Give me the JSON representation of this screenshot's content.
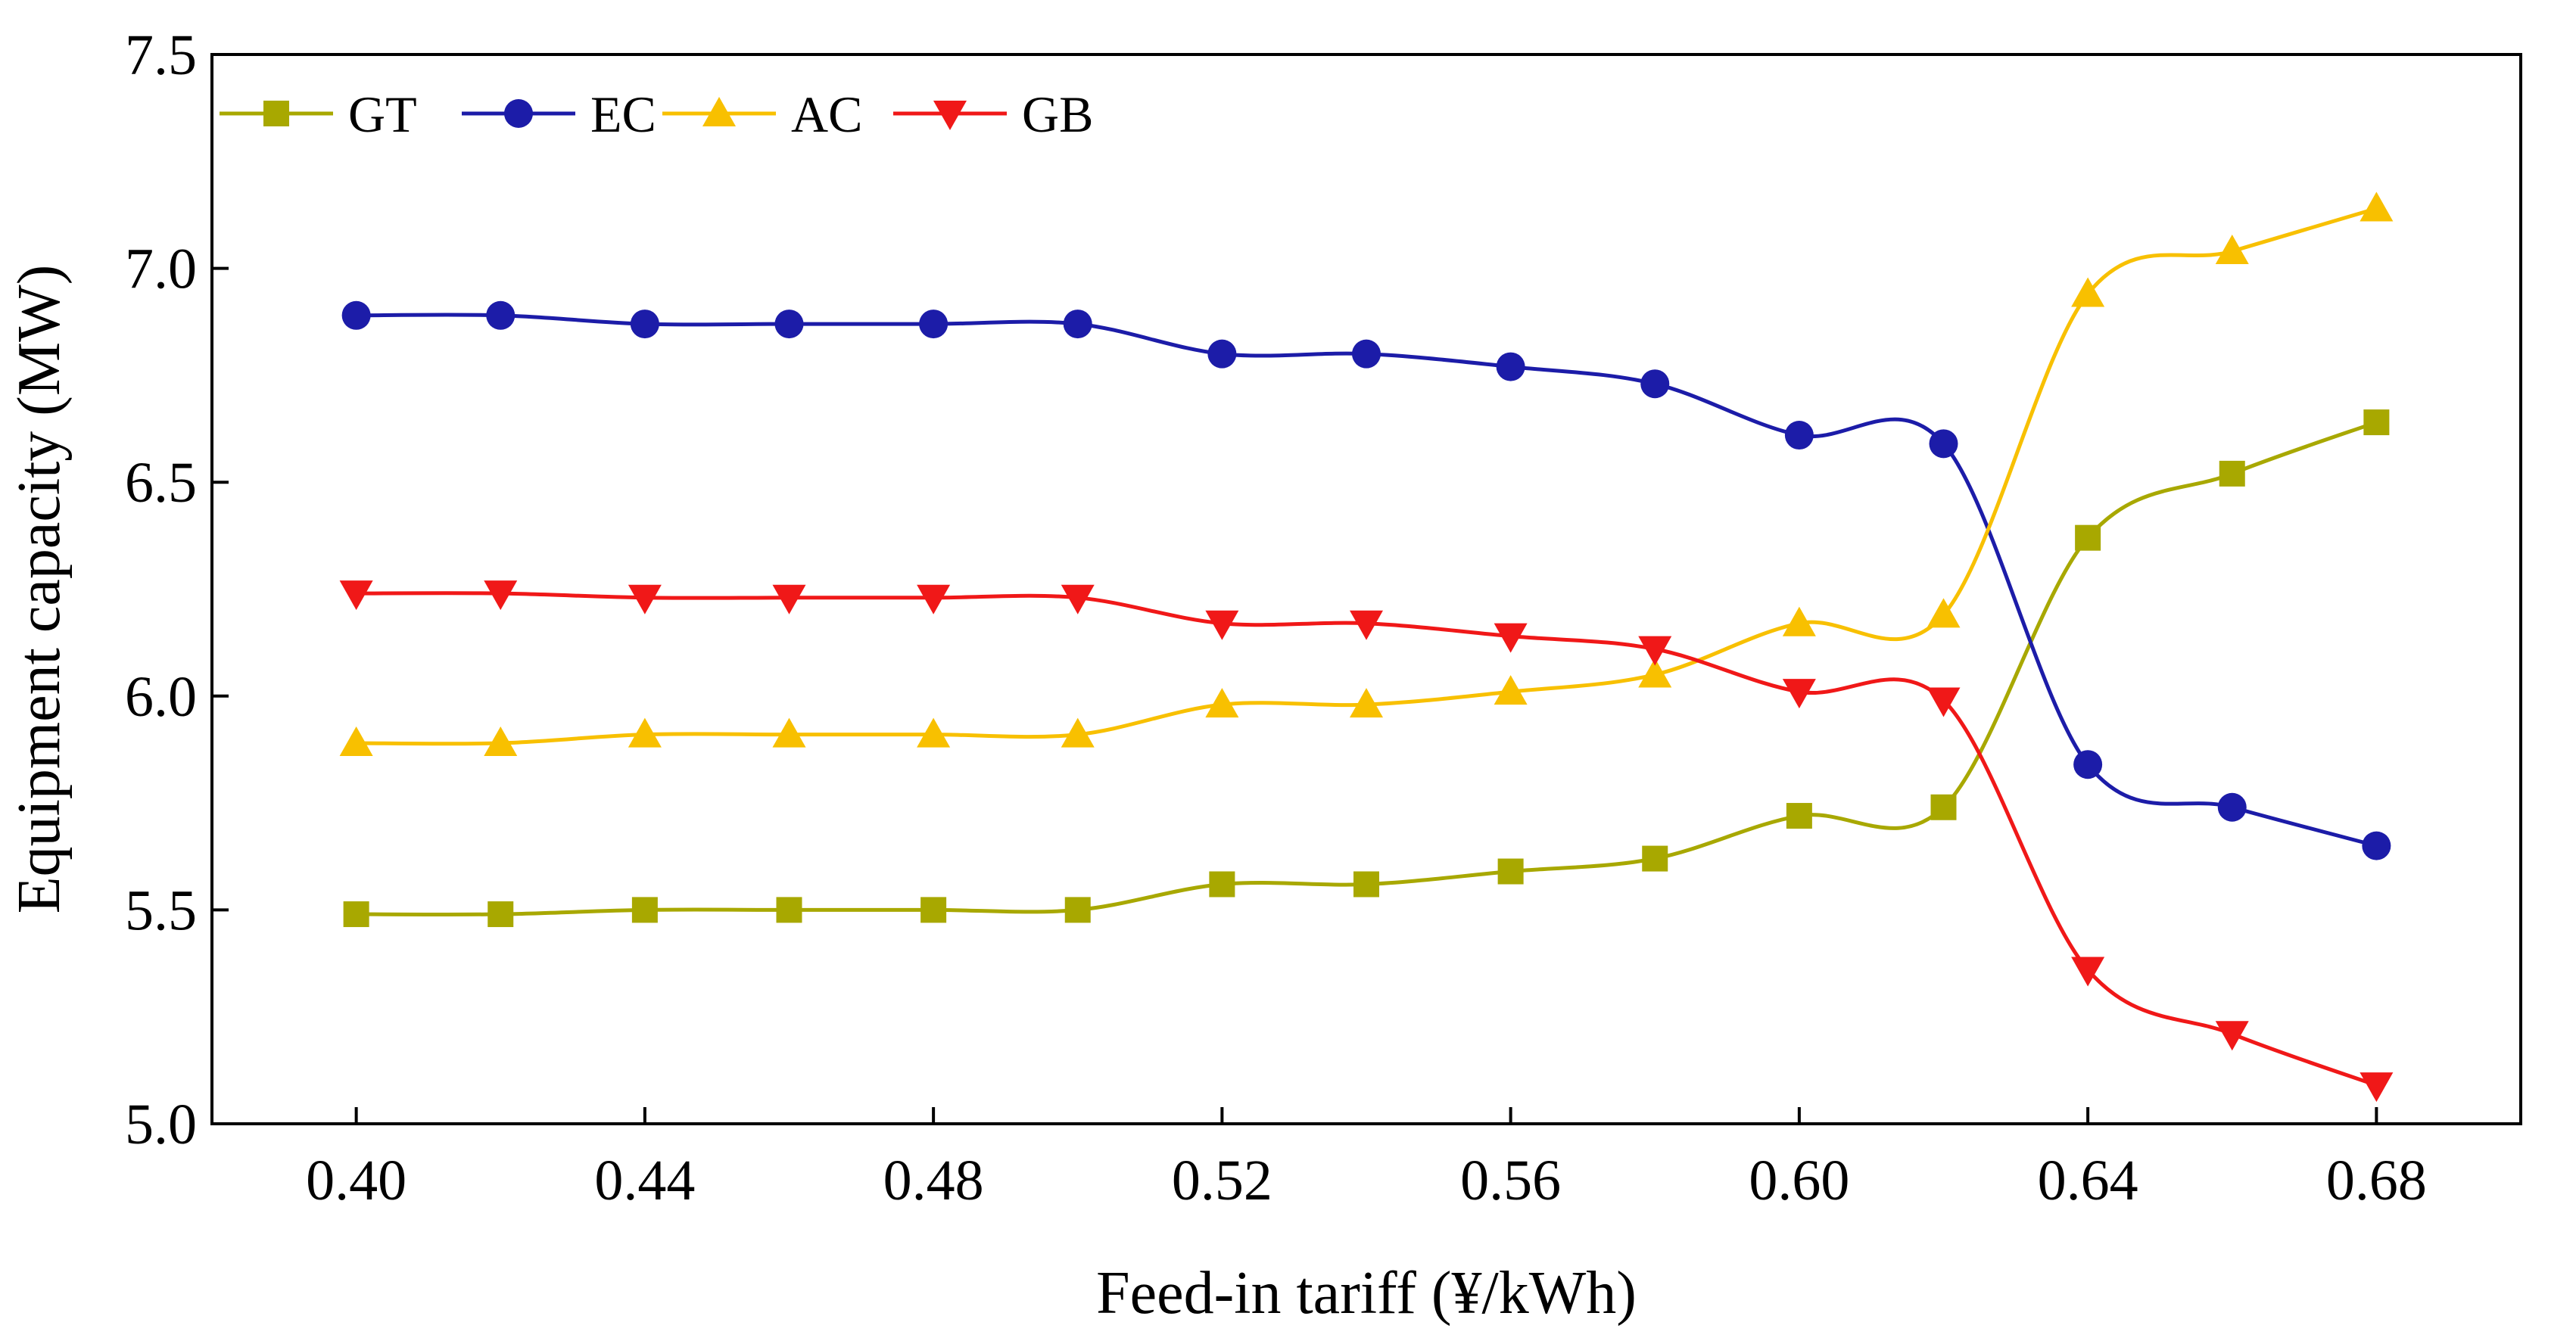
{
  "chart_data": {
    "type": "line",
    "smooth": true,
    "xlabel": "Feed-in tariff (¥/kWh)",
    "ylabel": "Equipment capacity (MW)",
    "xlim": [
      0.38,
      0.7
    ],
    "ylim": [
      5.0,
      7.5
    ],
    "xticks": [
      0.4,
      0.44,
      0.48,
      0.52,
      0.56,
      0.6,
      0.64,
      0.68
    ],
    "xtick_labels": [
      "0.40",
      "0.44",
      "0.48",
      "0.52",
      "0.56",
      "0.60",
      "0.64",
      "0.68"
    ],
    "yticks": [
      5.0,
      5.5,
      6.0,
      6.5,
      7.0,
      7.5
    ],
    "ytick_labels": [
      "5.0",
      "5.5",
      "6.0",
      "6.5",
      "7.0",
      "7.5"
    ],
    "grid": false,
    "legend_position": "top-left",
    "x": [
      0.4,
      0.42,
      0.44,
      0.46,
      0.48,
      0.5,
      0.52,
      0.54,
      0.56,
      0.58,
      0.6,
      0.62,
      0.64,
      0.66,
      0.68
    ],
    "series": [
      {
        "name": "GT",
        "color": "#a8a800",
        "marker": "square",
        "values": [
          5.49,
          5.49,
          5.5,
          5.5,
          5.5,
          5.5,
          5.56,
          5.56,
          5.59,
          5.62,
          5.72,
          5.74,
          6.37,
          6.52,
          6.64
        ]
      },
      {
        "name": "EC",
        "color": "#1c1ca8",
        "marker": "circle",
        "values": [
          6.89,
          6.89,
          6.87,
          6.87,
          6.87,
          6.87,
          6.8,
          6.8,
          6.77,
          6.73,
          6.61,
          6.59,
          5.84,
          5.74,
          5.65
        ]
      },
      {
        "name": "AC",
        "color": "#f8c000",
        "marker": "triangle-up",
        "values": [
          5.89,
          5.89,
          5.91,
          5.91,
          5.91,
          5.91,
          5.98,
          5.98,
          6.01,
          6.05,
          6.17,
          6.19,
          6.94,
          7.04,
          7.14
        ]
      },
      {
        "name": "GB",
        "color": "#f01818",
        "marker": "triangle-down",
        "values": [
          6.24,
          6.24,
          6.23,
          6.23,
          6.23,
          6.23,
          6.17,
          6.17,
          6.14,
          6.11,
          6.01,
          5.99,
          5.36,
          5.21,
          5.09
        ]
      }
    ]
  }
}
